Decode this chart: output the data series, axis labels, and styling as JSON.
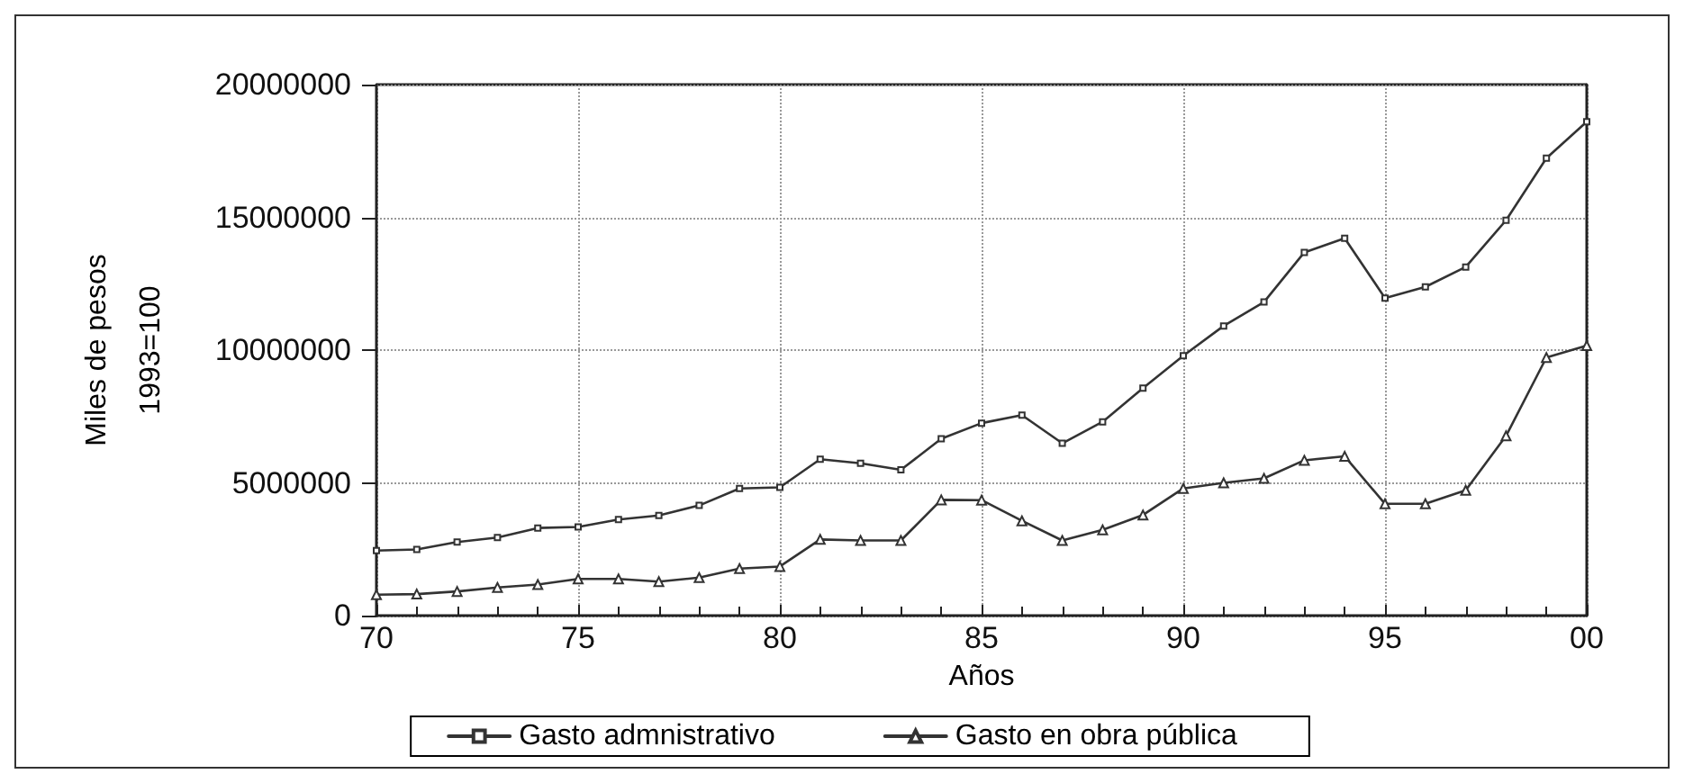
{
  "chart_data": {
    "type": "line",
    "xlabel": "Años",
    "ylabel": "Miles de pesos\n1993=100",
    "x": [
      1970,
      1971,
      1972,
      1973,
      1974,
      1975,
      1976,
      1977,
      1978,
      1979,
      1980,
      1981,
      1982,
      1983,
      1984,
      1985,
      1986,
      1987,
      1988,
      1989,
      1990,
      1991,
      1992,
      1993,
      1994,
      1995,
      1996,
      1997,
      1998,
      1999,
      2000
    ],
    "series": [
      {
        "name": "Gasto admnistrativo",
        "color": "#333333",
        "marker": "square",
        "values": [
          2450000,
          2490000,
          2770000,
          2940000,
          3300000,
          3340000,
          3620000,
          3770000,
          4150000,
          4790000,
          4830000,
          5890000,
          5740000,
          5490000,
          6660000,
          7250000,
          7550000,
          6490000,
          7300000,
          8570000,
          9790000,
          10910000,
          11810000,
          13680000,
          14210000,
          11960000,
          12380000,
          13130000,
          14890000,
          17230000,
          18600000
        ]
      },
      {
        "name": "Gasto en obra pública",
        "color": "#333333",
        "marker": "triangle",
        "values": [
          790000,
          810000,
          910000,
          1060000,
          1170000,
          1380000,
          1380000,
          1280000,
          1430000,
          1770000,
          1850000,
          2870000,
          2830000,
          2830000,
          4360000,
          4350000,
          3570000,
          2830000,
          3230000,
          3790000,
          4790000,
          5000000,
          5170000,
          5850000,
          6000000,
          4210000,
          4210000,
          4720000,
          6770000,
          9720000,
          10170000
        ]
      }
    ],
    "xlim": [
      1970,
      2000
    ],
    "xticks": [
      {
        "value": 1970,
        "label": "70"
      },
      {
        "value": 1975,
        "label": "75"
      },
      {
        "value": 1980,
        "label": "80"
      },
      {
        "value": 1985,
        "label": "85"
      },
      {
        "value": 1990,
        "label": "90"
      },
      {
        "value": 1995,
        "label": "95"
      },
      {
        "value": 2000,
        "label": "00"
      }
    ],
    "ylim": [
      0,
      20000000
    ],
    "yticks": [
      0,
      5000000,
      10000000,
      15000000,
      20000000
    ],
    "grid": true,
    "legend": "bottom",
    "line_style": "solid"
  }
}
